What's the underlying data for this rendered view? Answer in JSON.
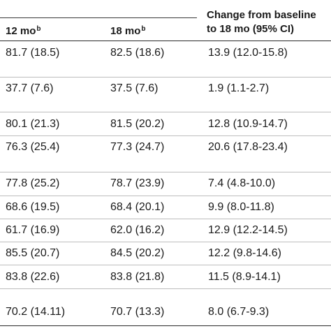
{
  "header": {
    "col1_label": "12 mo",
    "col1_sup": "b",
    "col2_label": "18 mo",
    "col2_sup": "b",
    "col3_line1": "Change from baseline",
    "col3_line2": "to 18 mo (95% CI)"
  },
  "rows": [
    {
      "m12": "81.7 (18.5)",
      "m18": "82.5 (18.6)",
      "change": "13.9 (12.0-15.8)"
    },
    {
      "m12": "37.7 (7.6)",
      "m18": "37.5 (7.6)",
      "change": "1.9 (1.1-2.7)"
    },
    {
      "m12": "80.1 (21.3)",
      "m18": "81.5 (20.2)",
      "change": "12.8 (10.9-14.7)"
    },
    {
      "m12": "76.3 (25.4)",
      "m18": "77.3 (24.7)",
      "change": "20.6 (17.8-23.4)"
    },
    {
      "m12": "77.8 (25.2)",
      "m18": "78.7 (23.9)",
      "change": "7.4 (4.8-10.0)"
    },
    {
      "m12": "68.6 (19.5)",
      "m18": "68.4 (20.1)",
      "change": "9.9 (8.0-11.8)"
    },
    {
      "m12": "61.7 (16.9)",
      "m18": "62.0 (16.2)",
      "change": "12.9 (12.2-14.5)"
    },
    {
      "m12": "85.5 (20.7)",
      "m18": "84.5 (20.2)",
      "change": "12.2 (9.8-14.6)"
    },
    {
      "m12": "83.8 (22.6)",
      "m18": "83.8 (21.8)",
      "change": "11.5 (8.9-14.1)"
    },
    {
      "m12": "70.2 (14.11)",
      "m18": "70.7 (13.3)",
      "change": "8.0 (6.7-9.3)"
    }
  ]
}
